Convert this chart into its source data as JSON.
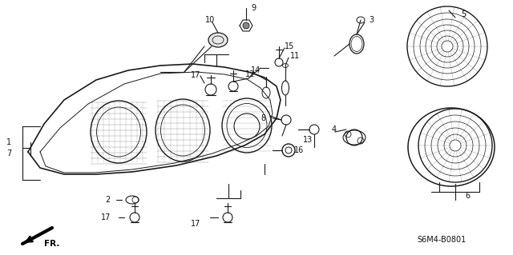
{
  "background_color": "#ffffff",
  "fig_width": 6.4,
  "fig_height": 3.19,
  "dpi": 100,
  "code_text": "S6M4-B0801",
  "line_color": "#1a1a1a",
  "text_color": "#111111"
}
